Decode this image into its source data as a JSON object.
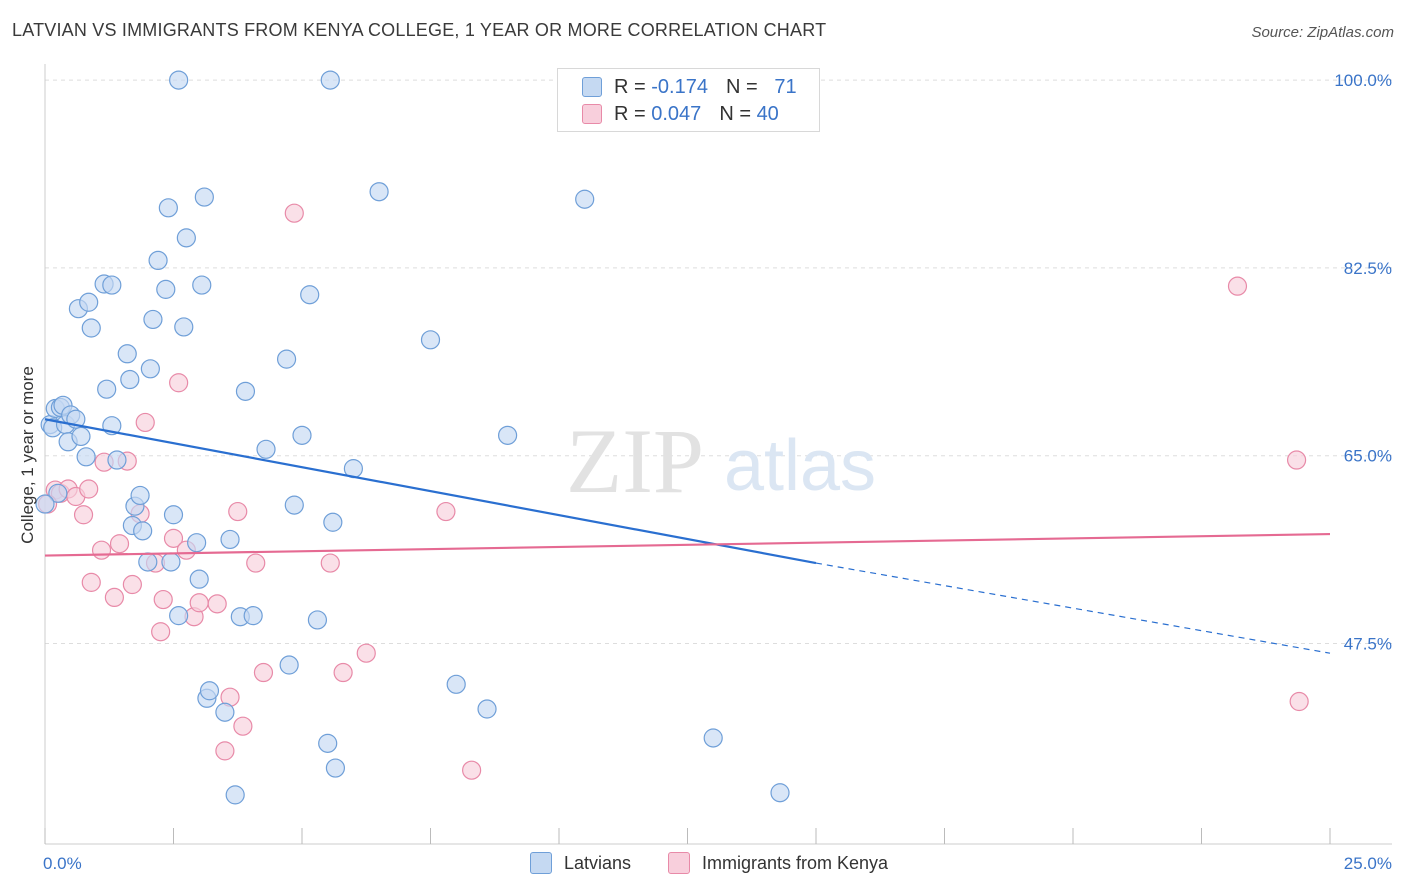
{
  "title": "LATVIAN VS IMMIGRANTS FROM KENYA COLLEGE, 1 YEAR OR MORE CORRELATION CHART",
  "source": "Source: ZipAtlas.com",
  "watermark": {
    "zip": "ZIP",
    "atlas": "atlas"
  },
  "legend_top": {
    "rows": [
      {
        "r_label": "R =",
        "r_value": "-0.174",
        "n_label": "N =",
        "n_value": "71"
      },
      {
        "r_label": "R =",
        "r_value": "0.047",
        "n_label": "N =",
        "n_value": "40"
      }
    ]
  },
  "legend_bottom": {
    "items": [
      "Latvians",
      "Immigrants from Kenya"
    ]
  },
  "colors": {
    "latvians_fill": "#c5d9f2",
    "latvians_stroke": "#6f9fd8",
    "latvians_line": "#2a6fd0",
    "kenya_fill": "#f8cfdc",
    "kenya_stroke": "#e88aa8",
    "kenya_line": "#e56a92",
    "tick_label": "#3a74c8",
    "grid": "#dddddd"
  },
  "chart_data": {
    "type": "scatter",
    "title": "LATVIAN VS IMMIGRANTS FROM KENYA COLLEGE, 1 YEAR OR MORE CORRELATION CHART",
    "xlabel": "",
    "ylabel": "College, 1 year or more",
    "xlim": [
      0,
      25
    ],
    "ylim": [
      30.5,
      101.5
    ],
    "x_tick_labels": [
      {
        "value": 0,
        "label": "0.0%"
      },
      {
        "value": 25,
        "label": "25.0%"
      }
    ],
    "y_tick_labels": [
      {
        "value": 100,
        "label": "100.0%"
      },
      {
        "value": 82.5,
        "label": "82.5%"
      },
      {
        "value": 65,
        "label": "65.0%"
      },
      {
        "value": 47.5,
        "label": "47.5%"
      }
    ],
    "grid": true,
    "legend_placement": "top-center",
    "series": [
      {
        "name": "Latvians",
        "r": -0.174,
        "n": 71,
        "trend": {
          "x0": 0,
          "y0": 68.4,
          "x1": 15,
          "y1": 55.0,
          "dashed_to_x": 25,
          "dashed_to_y": 46.6
        },
        "points": [
          [
            0.1,
            67.9
          ],
          [
            0.15,
            67.6
          ],
          [
            0.2,
            69.4
          ],
          [
            0.3,
            69.5
          ],
          [
            0.35,
            69.7
          ],
          [
            0.4,
            67.9
          ],
          [
            0.45,
            66.3
          ],
          [
            0.5,
            68.8
          ],
          [
            0.6,
            68.4
          ],
          [
            0.7,
            66.8
          ],
          [
            0.8,
            64.9
          ],
          [
            0.65,
            78.7
          ],
          [
            0.85,
            79.3
          ],
          [
            0.9,
            76.9
          ],
          [
            1.15,
            81.0
          ],
          [
            1.3,
            80.9
          ],
          [
            1.2,
            71.2
          ],
          [
            1.3,
            67.8
          ],
          [
            1.4,
            64.6
          ],
          [
            1.6,
            74.5
          ],
          [
            1.65,
            72.1
          ],
          [
            1.75,
            60.3
          ],
          [
            1.7,
            58.5
          ],
          [
            1.85,
            61.3
          ],
          [
            1.9,
            58.0
          ],
          [
            2.0,
            55.1
          ],
          [
            2.05,
            73.1
          ],
          [
            2.1,
            77.7
          ],
          [
            2.2,
            83.2
          ],
          [
            2.35,
            80.5
          ],
          [
            2.4,
            88.1
          ],
          [
            2.45,
            55.1
          ],
          [
            2.5,
            59.5
          ],
          [
            2.6,
            50.1
          ],
          [
            2.7,
            77.0
          ],
          [
            2.75,
            85.3
          ],
          [
            2.95,
            56.9
          ],
          [
            3.0,
            53.5
          ],
          [
            3.05,
            80.9
          ],
          [
            3.1,
            89.1
          ],
          [
            3.15,
            42.4
          ],
          [
            3.2,
            43.1
          ],
          [
            3.5,
            41.1
          ],
          [
            3.6,
            57.2
          ],
          [
            3.7,
            33.4
          ],
          [
            3.8,
            50.0
          ],
          [
            3.9,
            71.0
          ],
          [
            4.05,
            50.1
          ],
          [
            4.3,
            65.6
          ],
          [
            4.7,
            74.0
          ],
          [
            4.75,
            45.5
          ],
          [
            4.85,
            60.4
          ],
          [
            5.0,
            66.9
          ],
          [
            5.15,
            80.0
          ],
          [
            5.3,
            49.7
          ],
          [
            5.5,
            38.2
          ],
          [
            5.6,
            58.8
          ],
          [
            5.65,
            35.9
          ],
          [
            6.0,
            63.8
          ],
          [
            6.5,
            89.6
          ],
          [
            2.6,
            100.0
          ],
          [
            5.55,
            100.0
          ],
          [
            7.5,
            75.8
          ],
          [
            8.0,
            43.7
          ],
          [
            8.6,
            41.4
          ],
          [
            9.0,
            66.9
          ],
          [
            10.5,
            88.9
          ],
          [
            13.0,
            38.7
          ],
          [
            14.3,
            33.6
          ],
          [
            0.25,
            61.5
          ],
          [
            0.0,
            60.5
          ]
        ]
      },
      {
        "name": "Immigrants from Kenya",
        "r": 0.047,
        "n": 40,
        "trend": {
          "x0": 0,
          "y0": 55.7,
          "x1": 25,
          "y1": 57.7
        },
        "points": [
          [
            0.2,
            61.8
          ],
          [
            0.3,
            61.5
          ],
          [
            0.45,
            61.9
          ],
          [
            0.6,
            61.2
          ],
          [
            0.75,
            59.5
          ],
          [
            0.85,
            61.9
          ],
          [
            0.9,
            53.2
          ],
          [
            1.1,
            56.2
          ],
          [
            1.15,
            64.4
          ],
          [
            1.35,
            51.8
          ],
          [
            1.45,
            56.8
          ],
          [
            1.6,
            64.5
          ],
          [
            1.7,
            53.0
          ],
          [
            1.85,
            59.6
          ],
          [
            1.95,
            68.1
          ],
          [
            2.15,
            55.0
          ],
          [
            2.25,
            48.6
          ],
          [
            2.3,
            51.6
          ],
          [
            2.5,
            57.3
          ],
          [
            2.6,
            71.8
          ],
          [
            2.75,
            56.2
          ],
          [
            2.9,
            50.0
          ],
          [
            3.0,
            51.3
          ],
          [
            3.35,
            51.2
          ],
          [
            3.5,
            37.5
          ],
          [
            3.75,
            59.8
          ],
          [
            3.85,
            39.8
          ],
          [
            3.6,
            42.5
          ],
          [
            4.1,
            55.0
          ],
          [
            4.25,
            44.8
          ],
          [
            4.85,
            87.6
          ],
          [
            5.55,
            55.0
          ],
          [
            5.8,
            44.8
          ],
          [
            6.25,
            46.6
          ],
          [
            7.8,
            59.8
          ],
          [
            8.3,
            35.7
          ],
          [
            23.2,
            80.8
          ],
          [
            24.35,
            64.6
          ],
          [
            24.4,
            42.1
          ],
          [
            0.05,
            60.5
          ]
        ]
      }
    ]
  }
}
